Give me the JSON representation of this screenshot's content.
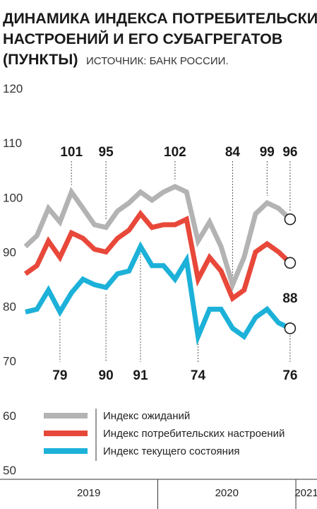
{
  "chart_data": {
    "type": "line",
    "title_lines": [
      "ДИНАМИКА ИНДЕКСА ПОТРЕБИТЕЛЬСКИХ",
      "НАСТРОЕНИЙ И ЕГО СУБАГРЕГАТОВ",
      "(ПУНКТЫ)"
    ],
    "source": "ИСТОЧНИК: БАНК РОССИИ.",
    "ylim": [
      50,
      120
    ],
    "yticks": [
      50,
      60,
      70,
      80,
      90,
      100,
      110,
      120
    ],
    "years": [
      {
        "label": "2019",
        "start": 0,
        "end": 12
      },
      {
        "label": "2020",
        "start": 12,
        "end": 24
      },
      {
        "label": "2021",
        "start": 24,
        "end": 28
      }
    ],
    "series": [
      {
        "name": "Индекс ожиданий",
        "color": "#b3b3b3",
        "values": [
          91,
          93,
          98,
          95.5,
          101,
          98,
          95,
          94.5,
          97.5,
          99,
          101,
          99.5,
          101,
          102,
          101,
          92,
          95.5,
          91,
          84,
          89,
          97,
          99,
          98,
          96
        ]
      },
      {
        "name": "Индекс потребительских настроений",
        "color": "#e8483a",
        "values": [
          86,
          87.5,
          92,
          89,
          93.5,
          92.5,
          90.5,
          90,
          92.5,
          94,
          97,
          94.5,
          95,
          95,
          96,
          85,
          89,
          86.5,
          81.5,
          83,
          90,
          91.5,
          90,
          88
        ]
      },
      {
        "name": "Индекс текущего состояния",
        "color": "#1cb1d8",
        "values": [
          79,
          79.5,
          83,
          79,
          82.5,
          85,
          84,
          83.5,
          86,
          86.5,
          91,
          87.5,
          87.5,
          85,
          88.5,
          74.5,
          79.5,
          79.5,
          76,
          74.5,
          78,
          79.5,
          77,
          76
        ]
      }
    ],
    "annotations_top": [
      {
        "text": "101",
        "index": 4
      },
      {
        "text": "95",
        "index": 7
      },
      {
        "text": "102",
        "index": 13
      },
      {
        "text": "84",
        "index": 18
      },
      {
        "text": "99",
        "index": 21
      },
      {
        "text": "96",
        "index": 23
      }
    ],
    "annotations_bottom": [
      {
        "text": "79",
        "index": 3
      },
      {
        "text": "90",
        "index": 7
      },
      {
        "text": "91",
        "index": 10
      },
      {
        "text": "74",
        "index": 15
      },
      {
        "text": "76",
        "index": 23
      }
    ],
    "annotation_side": {
      "text": "88",
      "index": 23
    },
    "end_markers_index": 23
  }
}
